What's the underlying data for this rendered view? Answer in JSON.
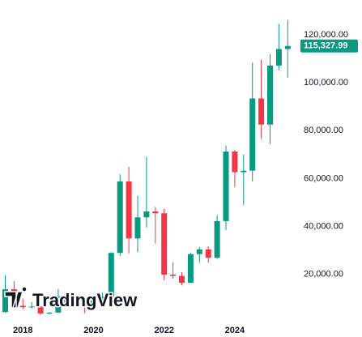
{
  "chart_data": {
    "type": "candlestick",
    "watermark": "TradingView",
    "categories": [
      null,
      null,
      "2018",
      null,
      null,
      null,
      null,
      null,
      null,
      null,
      "2020",
      null,
      null,
      null,
      null,
      null,
      null,
      null,
      "2022",
      null,
      null,
      null,
      null,
      null,
      null,
      null,
      "2024",
      null,
      null,
      null,
      null,
      null,
      null
    ],
    "open": [
      4340,
      13850,
      6930,
      6390,
      6630,
      3740,
      4100,
      10820,
      8290,
      7200,
      6420,
      9140,
      10780,
      28990,
      58800,
      35040,
      43820,
      46310,
      45540,
      19930,
      19420,
      16540,
      28480,
      30480,
      26970,
      42280,
      71290,
      62680,
      63300,
      93430,
      82550,
      107140,
      114050
    ],
    "high": [
      19700,
      17200,
      9990,
      8500,
      6800,
      4200,
      13900,
      12300,
      10550,
      10500,
      10080,
      12470,
      29300,
      61800,
      64900,
      52900,
      69000,
      48200,
      47400,
      25200,
      21000,
      29200,
      31430,
      31800,
      44700,
      73800,
      72000,
      70000,
      108350,
      109600,
      111900,
      124500,
      126200
    ],
    "low": [
      4100,
      5900,
      5760,
      5850,
      3150,
      3350,
      4050,
      7700,
      6500,
      3800,
      6170,
      8900,
      10370,
      27730,
      28800,
      29300,
      39600,
      32900,
      17600,
      18150,
      15480,
      16500,
      24800,
      24900,
      26550,
      38550,
      56550,
      49000,
      58900,
      76600,
      74500,
      105200,
      102000
    ],
    "close": [
      13850,
      6930,
      6390,
      6630,
      3740,
      4100,
      10820,
      8290,
      7200,
      6420,
      9140,
      10780,
      28990,
      58800,
      35040,
      43820,
      46310,
      45540,
      19930,
      19420,
      16540,
      28480,
      30480,
      26970,
      42280,
      71290,
      62680,
      63300,
      93430,
      82550,
      107140,
      114050,
      115327.99
    ],
    "last_label": "115,327.99",
    "up_color": "#089981",
    "down_color": "#f23645",
    "ylim": [
      0,
      134500
    ],
    "yticks": [
      {
        "value": 20000,
        "label": "20,000.00"
      },
      {
        "value": 40000,
        "label": "40,000.00"
      },
      {
        "value": 60000,
        "label": "60,000.00"
      },
      {
        "value": 80000,
        "label": "80,000.00"
      },
      {
        "value": 100000,
        "label": "100,000.00"
      },
      {
        "value": 120000,
        "label": "120,000.00"
      }
    ]
  }
}
